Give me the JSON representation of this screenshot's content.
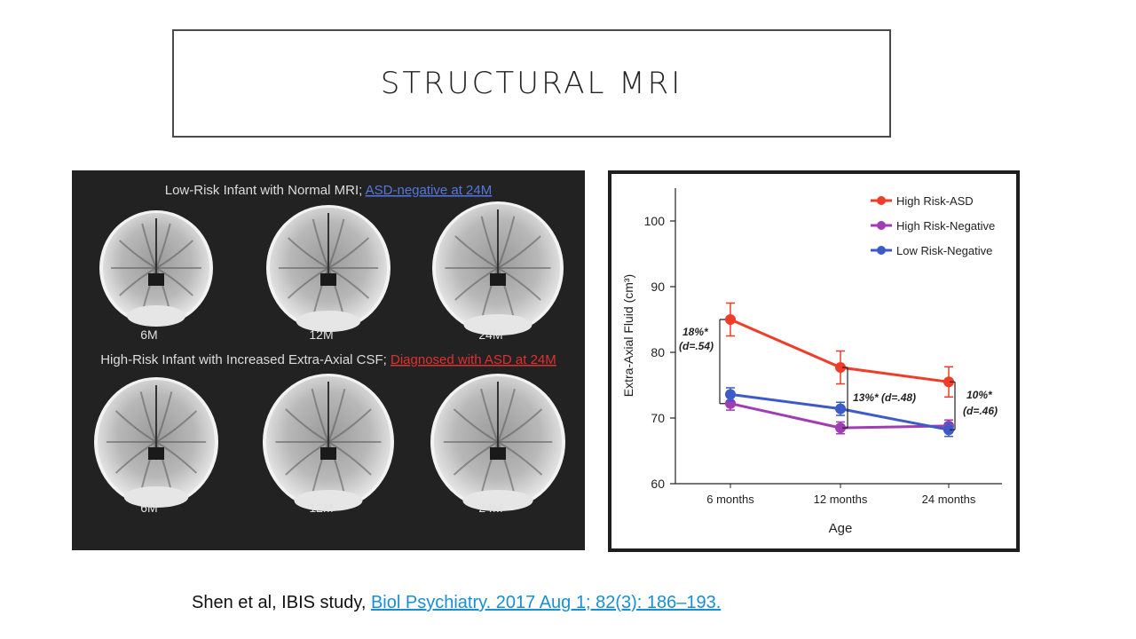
{
  "slide": {
    "title": "STRUCTURAL MRI",
    "citation_prefix": "Shen et al, IBIS study, ",
    "citation_link": "Biol Psychiatry. 2017 Aug 1; 82(3): 186–193. "
  },
  "mri": {
    "row1_caption_prefix": "Low-Risk Infant with Normal MRI; ",
    "row1_caption_highlight": "ASD-negative at 24M",
    "row2_caption_prefix": "High-Risk Infant with Increased Extra-Axial CSF; ",
    "row2_caption_highlight": "Diagnosed with ASD at 24M",
    "row1_labels": [
      "6M",
      "12M",
      "24M"
    ],
    "row2_labels": [
      "6M",
      "12M",
      "24M"
    ],
    "colors": {
      "highlight_blue": "#5577dd",
      "highlight_red": "#e03030"
    }
  },
  "chart_data": {
    "type": "line",
    "categories": [
      "6 months",
      "12 months",
      "24 months"
    ],
    "xlabel": "Age",
    "ylabel": "Extra-Axial Fluid (cm³)",
    "ylim": [
      60,
      105
    ],
    "yticks": [
      60,
      70,
      80,
      90,
      100
    ],
    "legend_position": "top-right",
    "series": [
      {
        "name": "High Risk-ASD",
        "color": "#f03c28",
        "values": [
          85,
          77.7,
          75.5
        ],
        "err": [
          2.5,
          2.5,
          2.3
        ]
      },
      {
        "name": "High Risk-Negative",
        "color": "#a03cb4",
        "values": [
          72.2,
          68.5,
          68.8
        ],
        "err": [
          1.0,
          0.9,
          0.9
        ]
      },
      {
        "name": "Low Risk-Negative",
        "color": "#3c5ac8",
        "values": [
          73.6,
          71.4,
          68.2
        ],
        "err": [
          1.0,
          1.0,
          1.0
        ]
      }
    ],
    "annotations": [
      {
        "line1": "18%*",
        "line2": "(d=.54)"
      },
      {
        "line1": "13%* (d=.48)"
      },
      {
        "line1": "10%*",
        "line2": "(d=.46)"
      }
    ]
  }
}
